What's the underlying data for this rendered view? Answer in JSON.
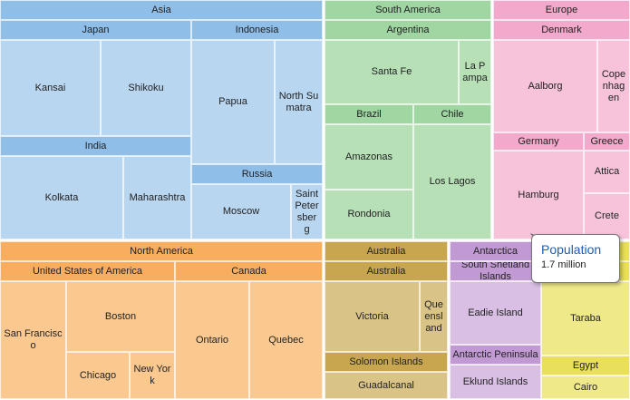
{
  "regions": [
    {
      "name": "Asia",
      "groups": [
        {
          "name": "Japan",
          "items": [
            "Kansai",
            "Shikoku"
          ]
        },
        {
          "name": "Indonesia",
          "items": [
            "Papua",
            "North Sumatra"
          ]
        },
        {
          "name": "India",
          "items": [
            "Kolkata",
            "Maharashtra"
          ]
        },
        {
          "name": "Russia",
          "items": [
            "Moscow",
            "Saint Petersberg"
          ]
        }
      ]
    },
    {
      "name": "South America",
      "groups": [
        {
          "name": "Argentina",
          "items": [
            "Santa Fe",
            "La Pampa"
          ]
        },
        {
          "name": "Brazil",
          "items": [
            "Amazonas",
            "Rondonia"
          ]
        },
        {
          "name": "Chile",
          "items": [
            "Los Lagos"
          ]
        }
      ]
    },
    {
      "name": "Europe",
      "groups": [
        {
          "name": "Denmark",
          "items": [
            "Aalborg",
            "Copenhagen"
          ]
        },
        {
          "name": "Germany",
          "items": [
            "Hamburg"
          ]
        },
        {
          "name": "Greece",
          "items": [
            "Attica",
            "Crete"
          ]
        }
      ]
    },
    {
      "name": "North America",
      "groups": [
        {
          "name": "United States of America",
          "items": [
            "San Francisco",
            "Boston",
            "Chicago",
            "New York"
          ]
        },
        {
          "name": "Canada",
          "items": [
            "Ontario",
            "Quebec"
          ]
        }
      ]
    },
    {
      "name": "Australia",
      "groups": [
        {
          "name": "Australia",
          "items": [
            "Victoria",
            "Queensland"
          ]
        },
        {
          "name": "Solomon Islands",
          "items": [
            "Guadalcanal"
          ]
        }
      ]
    },
    {
      "name": "Antarctica",
      "groups": [
        {
          "name": "South Shetland Islands",
          "items": [
            "Eadie Island"
          ]
        },
        {
          "name": "Antarctic Peninsula",
          "items": [
            "Eklund Islands"
          ]
        }
      ]
    },
    {
      "groups": [
        {
          "items": [
            "Taraba"
          ]
        },
        {
          "name": "Egypt",
          "items": [
            "Cairo"
          ]
        }
      ]
    }
  ],
  "tooltip": {
    "title": "Population",
    "value": "1.7 million"
  }
}
